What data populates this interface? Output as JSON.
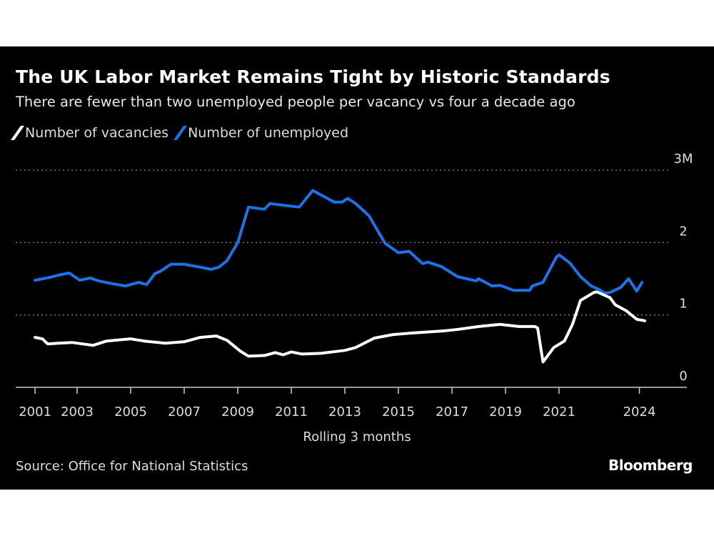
{
  "header": {
    "title": "The UK Labor Market Remains Tight by Historic Standards",
    "subtitle": "There are fewer than two unemployed people per vacancy vs four a decade ago"
  },
  "footer": {
    "source": "Source: Office for National Statistics",
    "logo": "Bloomberg"
  },
  "chart_data": {
    "type": "line",
    "title": "The UK Labor Market Remains Tight by Historic Standards",
    "subtitle": "There are fewer than two unemployed people per vacancy vs four a decade ago",
    "xlabel": "Rolling 3 months",
    "ylabel": "",
    "ylim": [
      0,
      3
    ],
    "y_ticks": [
      {
        "value": 0,
        "label": "0"
      },
      {
        "value": 1,
        "label": "1"
      },
      {
        "value": 2,
        "label": "2"
      },
      {
        "value": 3,
        "label": "3M"
      }
    ],
    "x_ticks": [
      "2001",
      "2003",
      "2005",
      "2007",
      "2009",
      "2011",
      "2013",
      "2015",
      "2017",
      "2019",
      "2021",
      "2024"
    ],
    "grid": "horizontal dotted",
    "legend_position": "top-left",
    "series": [
      {
        "name": "Number of vacancies",
        "color": "#ffffff",
        "points": [
          [
            2001.43,
            0.69
          ],
          [
            2001.7,
            0.67
          ],
          [
            2001.9,
            0.6
          ],
          [
            2002.3,
            0.61
          ],
          [
            2002.8,
            0.62
          ],
          [
            2003.6,
            0.58
          ],
          [
            2004.1,
            0.64
          ],
          [
            2004.7,
            0.66
          ],
          [
            2005.0,
            0.67
          ],
          [
            2005.5,
            0.64
          ],
          [
            2006.3,
            0.61
          ],
          [
            2007.0,
            0.63
          ],
          [
            2007.6,
            0.69
          ],
          [
            2008.2,
            0.71
          ],
          [
            2008.6,
            0.65
          ],
          [
            2009.1,
            0.5
          ],
          [
            2009.4,
            0.43
          ],
          [
            2010.0,
            0.44
          ],
          [
            2010.4,
            0.48
          ],
          [
            2010.7,
            0.45
          ],
          [
            2011.0,
            0.49
          ],
          [
            2011.4,
            0.46
          ],
          [
            2012.1,
            0.47
          ],
          [
            2013.0,
            0.51
          ],
          [
            2013.4,
            0.55
          ],
          [
            2014.1,
            0.68
          ],
          [
            2014.8,
            0.73
          ],
          [
            2015.5,
            0.75
          ],
          [
            2016.7,
            0.78
          ],
          [
            2017.2,
            0.8
          ],
          [
            2018.0,
            0.84
          ],
          [
            2018.8,
            0.87
          ],
          [
            2019.5,
            0.84
          ],
          [
            2020.1,
            0.84
          ],
          [
            2020.2,
            0.82
          ],
          [
            2020.4,
            0.35
          ],
          [
            2020.8,
            0.55
          ],
          [
            2021.2,
            0.64
          ],
          [
            2021.5,
            0.87
          ],
          [
            2021.8,
            1.2
          ],
          [
            2022.3,
            1.31
          ],
          [
            2022.4,
            1.32
          ],
          [
            2022.9,
            1.24
          ],
          [
            2023.1,
            1.14
          ],
          [
            2023.5,
            1.06
          ],
          [
            2023.9,
            0.94
          ],
          [
            2024.2,
            0.92
          ]
        ]
      },
      {
        "name": "Number of unemployed",
        "color": "#1a73e8",
        "points": [
          [
            2001.43,
            1.48
          ],
          [
            2002.0,
            1.52
          ],
          [
            2002.3,
            1.55
          ],
          [
            2002.7,
            1.58
          ],
          [
            2003.1,
            1.48
          ],
          [
            2003.5,
            1.51
          ],
          [
            2003.8,
            1.47
          ],
          [
            2004.2,
            1.44
          ],
          [
            2004.8,
            1.4
          ],
          [
            2005.3,
            1.45
          ],
          [
            2005.6,
            1.42
          ],
          [
            2005.9,
            1.57
          ],
          [
            2006.1,
            1.6
          ],
          [
            2006.5,
            1.7
          ],
          [
            2007.0,
            1.7
          ],
          [
            2007.6,
            1.66
          ],
          [
            2008.0,
            1.63
          ],
          [
            2008.3,
            1.66
          ],
          [
            2008.6,
            1.75
          ],
          [
            2009.0,
            2.0
          ],
          [
            2009.4,
            2.49
          ],
          [
            2010.0,
            2.46
          ],
          [
            2010.2,
            2.54
          ],
          [
            2010.8,
            2.51
          ],
          [
            2011.3,
            2.49
          ],
          [
            2011.8,
            2.72
          ],
          [
            2012.6,
            2.56
          ],
          [
            2012.9,
            2.56
          ],
          [
            2013.1,
            2.61
          ],
          [
            2013.4,
            2.54
          ],
          [
            2013.9,
            2.37
          ],
          [
            2014.5,
            1.99
          ],
          [
            2015.0,
            1.86
          ],
          [
            2015.4,
            1.88
          ],
          [
            2015.9,
            1.71
          ],
          [
            2016.1,
            1.73
          ],
          [
            2016.6,
            1.67
          ],
          [
            2017.2,
            1.53
          ],
          [
            2017.9,
            1.47
          ],
          [
            2018.0,
            1.5
          ],
          [
            2018.5,
            1.4
          ],
          [
            2018.8,
            1.41
          ],
          [
            2019.3,
            1.34
          ],
          [
            2019.9,
            1.34
          ],
          [
            2020.0,
            1.4
          ],
          [
            2020.4,
            1.45
          ],
          [
            2020.9,
            1.8
          ],
          [
            2021.0,
            1.83
          ],
          [
            2021.4,
            1.72
          ],
          [
            2021.8,
            1.53
          ],
          [
            2022.2,
            1.4
          ],
          [
            2022.5,
            1.35
          ],
          [
            2022.7,
            1.3
          ],
          [
            2022.9,
            1.31
          ],
          [
            2023.3,
            1.38
          ],
          [
            2023.6,
            1.5
          ],
          [
            2023.9,
            1.33
          ],
          [
            2024.1,
            1.45
          ]
        ]
      }
    ]
  }
}
